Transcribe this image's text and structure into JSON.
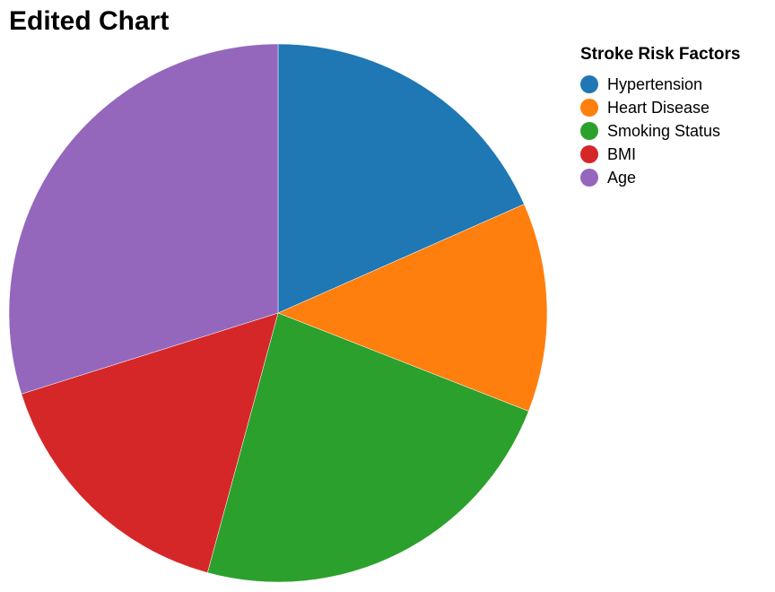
{
  "chart_data": {
    "type": "pie",
    "title": "Edited Chart",
    "legend_title": "Stroke Risk Factors",
    "legend_position": "top-right",
    "slices": [
      {
        "label": "Hypertension",
        "value": 18.7,
        "color": "#1f77b4"
      },
      {
        "label": "Heart Disease",
        "value": 12.8,
        "color": "#ff7f0e"
      },
      {
        "label": "Smoking Status",
        "value": 23.7,
        "color": "#2ca02c"
      },
      {
        "label": "BMI",
        "value": 16.2,
        "color": "#d62728"
      },
      {
        "label": "Age",
        "value": 30.4,
        "color": "#9467bd"
      }
    ]
  }
}
